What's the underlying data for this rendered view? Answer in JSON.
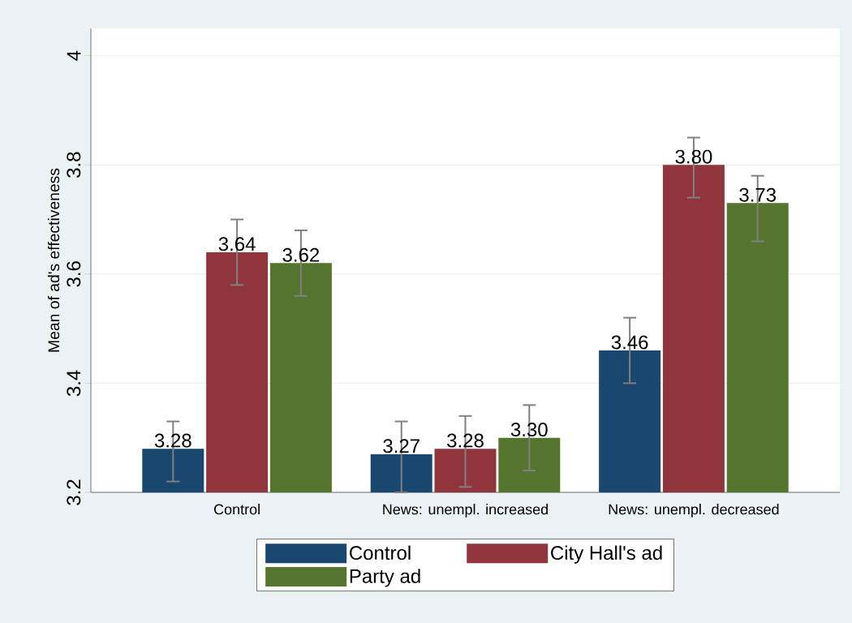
{
  "chart_data": {
    "type": "bar",
    "ylabel": "Mean of ad's effectiveness",
    "categories": [
      "Control",
      "News: unempl. increased",
      "News: unempl. decreased"
    ],
    "series": [
      {
        "name": "Control",
        "color": "#1a476f",
        "values": [
          3.28,
          3.27,
          3.46
        ],
        "value_labels": [
          "3.28",
          "3.27",
          "3.46"
        ],
        "errors": [
          [
            3.22,
            3.33
          ],
          [
            3.2,
            3.33
          ],
          [
            3.4,
            3.52
          ]
        ]
      },
      {
        "name": "City Hall's ad",
        "color": "#90353b",
        "values": [
          3.64,
          3.28,
          3.8
        ],
        "value_labels": [
          "3.64",
          "3.28",
          "3.80"
        ],
        "errors": [
          [
            3.58,
            3.7
          ],
          [
            3.21,
            3.34
          ],
          [
            3.74,
            3.85
          ]
        ]
      },
      {
        "name": "Party ad",
        "color": "#55752f",
        "values": [
          3.62,
          3.3,
          3.73
        ],
        "value_labels": [
          "3.62",
          "3.30",
          "3.73"
        ],
        "errors": [
          [
            3.56,
            3.68
          ],
          [
            3.24,
            3.36
          ],
          [
            3.66,
            3.78
          ]
        ]
      }
    ],
    "ylim": [
      3.2,
      4.05
    ],
    "yticks": [
      3.2,
      3.4,
      3.6,
      3.8,
      4
    ],
    "grid": "y",
    "legend": "bottom"
  }
}
